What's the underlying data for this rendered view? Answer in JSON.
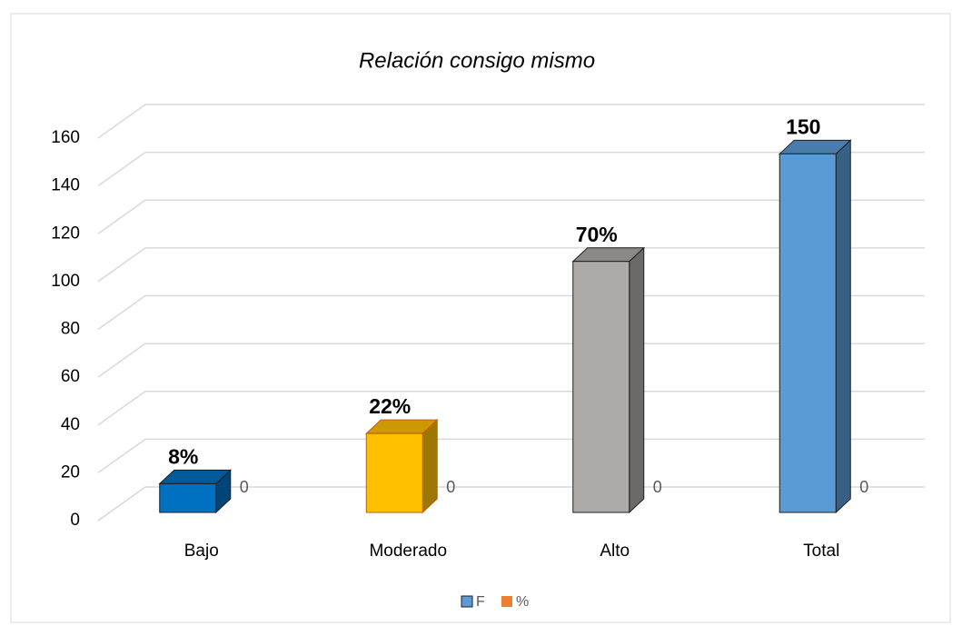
{
  "chart_data": {
    "type": "bar3d",
    "title": "Relación consigo mismo",
    "categories": [
      "Bajo",
      "Moderado",
      "Alto",
      "Total"
    ],
    "series": [
      {
        "name": "F",
        "color": "#5b9bd5",
        "colors": [
          "#0070c0",
          "#ffc000",
          "#aeaaaa",
          "#5b9bd5"
        ],
        "values": [
          12,
          33,
          105,
          150
        ],
        "value_labels": [
          "8%",
          "22%",
          "70%",
          "150"
        ]
      },
      {
        "name": "%",
        "color": "#ed7d31",
        "values": [
          0,
          0,
          0,
          0
        ]
      }
    ],
    "ylim": [
      0,
      160
    ],
    "yticks": [
      0,
      20,
      40,
      60,
      80,
      100,
      120,
      140,
      160
    ],
    "grid": true,
    "legend": "bottom"
  }
}
